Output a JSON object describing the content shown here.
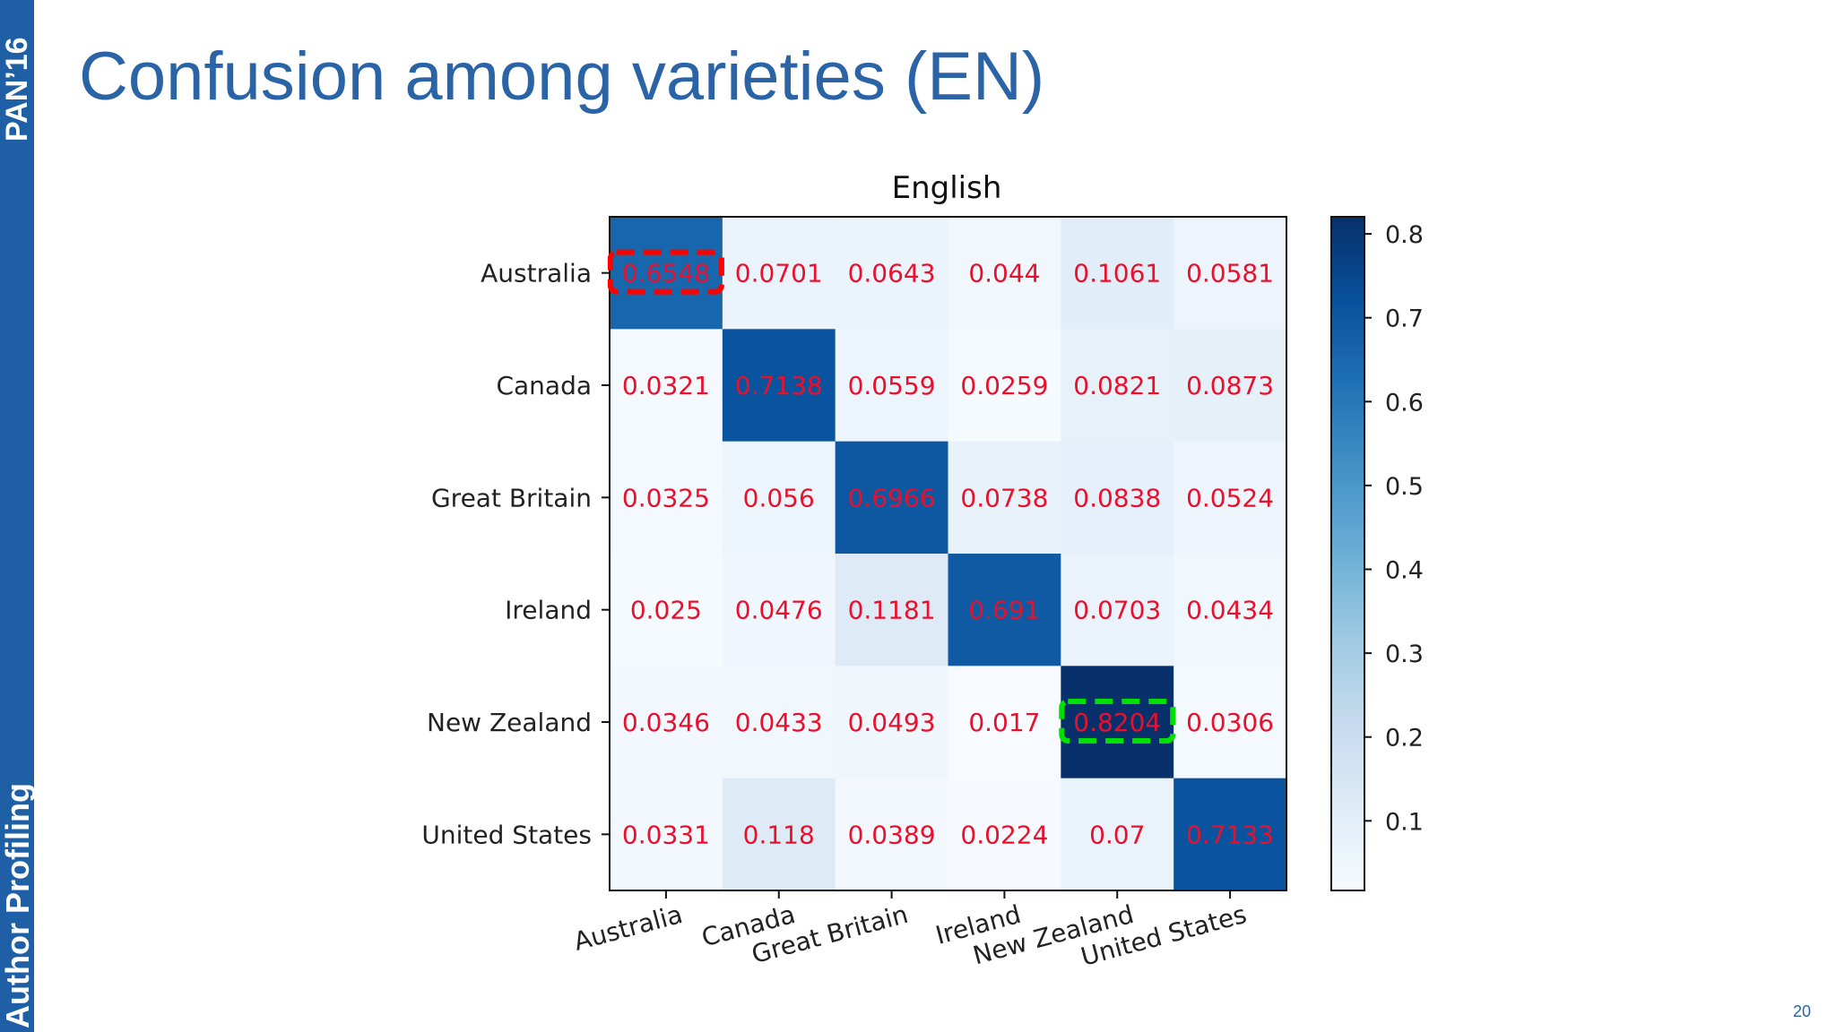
{
  "slide": {
    "title": "Confusion among varieties (EN)",
    "sidebar_top": "PAN’16",
    "sidebar_bottom": "Author Profiling",
    "page_number": "20"
  },
  "colors": {
    "sidebar": "#1f5fa6",
    "title": "#2a64a6",
    "cell_text": "#e8112d",
    "highlight_red": "#ff0000",
    "highlight_green": "#00e000"
  },
  "chart_data": {
    "type": "heatmap",
    "title": "English",
    "rows": [
      "Australia",
      "Canada",
      "Great Britain",
      "Ireland",
      "New Zealand",
      "United States"
    ],
    "columns": [
      "Australia",
      "Canada",
      "Great Britain",
      "Ireland",
      "New Zealand",
      "United States"
    ],
    "values": [
      [
        "0.6548",
        "0.0701",
        "0.0643",
        "0.044",
        "0.1061",
        "0.0581"
      ],
      [
        "0.0321",
        "0.7138",
        "0.0559",
        "0.0259",
        "0.0821",
        "0.0873"
      ],
      [
        "0.0325",
        "0.056",
        "0.6966",
        "0.0738",
        "0.0838",
        "0.0524"
      ],
      [
        "0.025",
        "0.0476",
        "0.1181",
        "0.691",
        "0.0703",
        "0.0434"
      ],
      [
        "0.0346",
        "0.0433",
        "0.0493",
        "0.017",
        "0.8204",
        "0.0306"
      ],
      [
        "0.0331",
        "0.118",
        "0.0389",
        "0.0224",
        "0.07",
        "0.7133"
      ]
    ],
    "colormap": "Blues",
    "colorbar": {
      "range": [
        0.017,
        0.8204
      ],
      "ticks": [
        "0.1",
        "0.2",
        "0.3",
        "0.4",
        "0.5",
        "0.6",
        "0.7",
        "0.8"
      ]
    },
    "highlights": [
      {
        "row": 0,
        "col": 0,
        "color": "red"
      },
      {
        "row": 4,
        "col": 4,
        "color": "green"
      }
    ]
  }
}
